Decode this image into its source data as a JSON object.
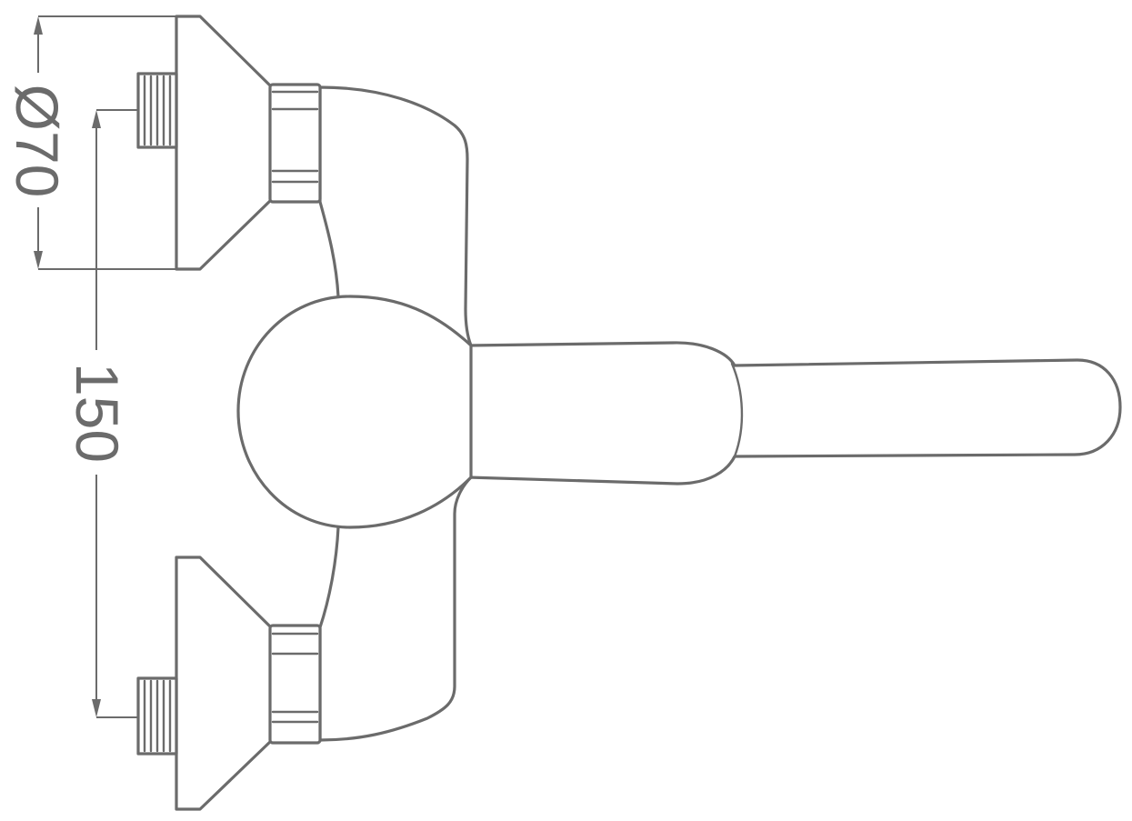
{
  "dimensions": {
    "diameter_label": "Ø70",
    "spacing_label": "150"
  },
  "colors": {
    "line": "#6b6b6b",
    "background": "#ffffff"
  }
}
